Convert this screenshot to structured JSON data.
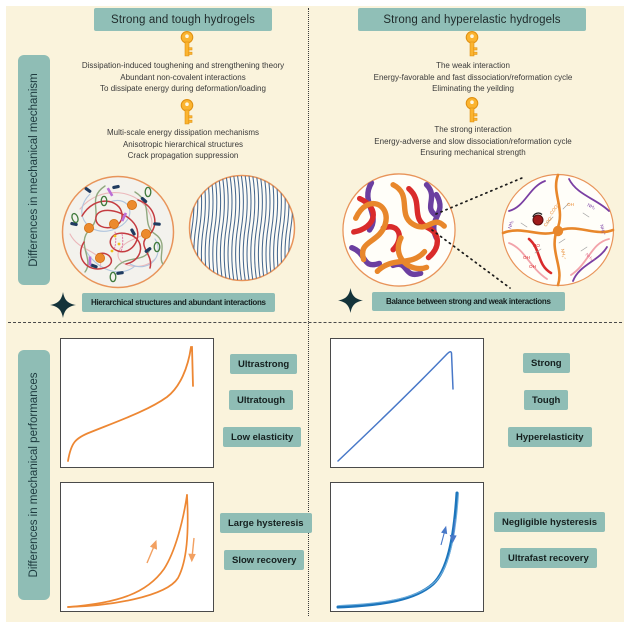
{
  "figure": {
    "section_labels": {
      "mechanism": "Differences in mechanical mechanism",
      "performance": "Differences in mechanical performances"
    }
  },
  "mechanism": {
    "left": {
      "title": "Strong and tough hydrogels",
      "block1": [
        "Dissipation-induced toughening and strengthening theory",
        "Abundant non-covalent interactions",
        "To dissipate energy during deformation/loading"
      ],
      "block2": [
        "Multi-scale energy dissipation mechanisms",
        "Anisotropic hierarchical structures",
        "Crack propagation suppression"
      ],
      "banner": "Hierarchical structures and abundant interactions"
    },
    "right": {
      "title": "Strong and hyperelastic hydrogels",
      "block1": [
        "The weak interaction",
        "Energy-favorable and fast dissociation/reformation cycle",
        "Eliminating the yeilding"
      ],
      "block2": [
        "The strong interaction",
        "Energy-adverse and slow dissociation/reformation cycle",
        "Ensuring mechanical strength"
      ],
      "banner": "Balance between strong and weak interactions",
      "chem": [
        "COO⁻",
        "COO⁻",
        "OH",
        "NH₂",
        "NH₃⁺",
        "NH₂",
        "HO",
        "OH",
        "OH",
        "NH₃⁺",
        "NH₃⁺"
      ]
    }
  },
  "performance": {
    "left": {
      "tags1": [
        "Ultrastrong",
        "Ultratough",
        "Low elasticity"
      ],
      "tags2": [
        "Large hysteresis",
        "Slow recovery"
      ]
    },
    "right": {
      "tags1": [
        "Strong",
        "Tough",
        "Hyperelasticity"
      ],
      "tags2": [
        "Negligible hysteresis",
        "Ultrafast recovery"
      ]
    }
  },
  "icons": {
    "key": "key-icon",
    "star": "four-point-star-icon"
  },
  "colors": {
    "accent_teal": "#90BFB7",
    "cream_bg": "#FAF3DC",
    "orange_curve": "#ED8733",
    "blue_curve": "#1C75BC",
    "blue_line": "#4878C8",
    "star": "#14333A",
    "circle_border": "#E8945A",
    "key_gold": "#FBB430"
  },
  "chart_data": [
    {
      "type": "line",
      "panel": "performance-left-top",
      "description": "Tensile stress-strain curve of strong and tough hydrogel ending in sharp fracture drop (ultrastrong, ultratough, low elasticity)",
      "axes_visible": false,
      "line_color": "#ED8733",
      "series": [
        {
          "name": "tensile loading",
          "x": [
            0,
            0.05,
            0.15,
            0.3,
            0.5,
            0.7,
            0.82,
            0.9,
            0.95,
            0.97
          ],
          "y": [
            0,
            0.15,
            0.25,
            0.34,
            0.46,
            0.6,
            0.74,
            0.88,
            1.0,
            0.62
          ]
        }
      ],
      "annotation": "sharp fracture drop at peak"
    },
    {
      "type": "line",
      "panel": "performance-left-bottom",
      "description": "Loading-unloading cycle with large hysteresis loop and slow recovery",
      "axes_visible": false,
      "line_color": "#ED8733",
      "series": [
        {
          "name": "loading",
          "x": [
            0,
            0.2,
            0.4,
            0.55,
            0.68,
            0.78,
            0.85
          ],
          "y": [
            0,
            0.03,
            0.1,
            0.25,
            0.5,
            0.8,
            1.0
          ]
        },
        {
          "name": "unloading",
          "x": [
            0.85,
            0.84,
            0.8,
            0.7,
            0.5,
            0.25,
            0
          ],
          "y": [
            1.0,
            0.6,
            0.3,
            0.12,
            0.04,
            0.01,
            0
          ]
        }
      ],
      "annotation": "up arrow on loading branch, down arrow on unloading branch"
    },
    {
      "type": "line",
      "panel": "performance-right-top",
      "description": "Nearly linear elastic stress-strain curve of strong and hyperelastic hydrogel with fracture drop (strong, tough, hyperelasticity)",
      "axes_visible": false,
      "line_color": "#4878C8",
      "series": [
        {
          "name": "tensile loading",
          "x": [
            0,
            0.2,
            0.4,
            0.6,
            0.75,
            0.8,
            0.82
          ],
          "y": [
            0,
            0.25,
            0.5,
            0.77,
            0.95,
            1.0,
            0.55
          ]
        }
      ],
      "annotation": "nearly linear rise then vertical fracture drop"
    },
    {
      "type": "line",
      "panel": "performance-right-bottom",
      "description": "J-shaped loading-unloading curves that overlap: negligible hysteresis, ultrafast recovery",
      "axes_visible": false,
      "line_color": "#1C75BC",
      "series": [
        {
          "name": "loading",
          "x": [
            0,
            0.3,
            0.5,
            0.65,
            0.78,
            0.85
          ],
          "y": [
            0,
            0.02,
            0.08,
            0.25,
            0.6,
            1.0
          ]
        },
        {
          "name": "unloading",
          "x": [
            0.85,
            0.78,
            0.65,
            0.5,
            0.3,
            0
          ],
          "y": [
            0.98,
            0.58,
            0.24,
            0.07,
            0.02,
            0
          ]
        }
      ],
      "annotation": "loading and unloading branches nearly coincide"
    }
  ]
}
